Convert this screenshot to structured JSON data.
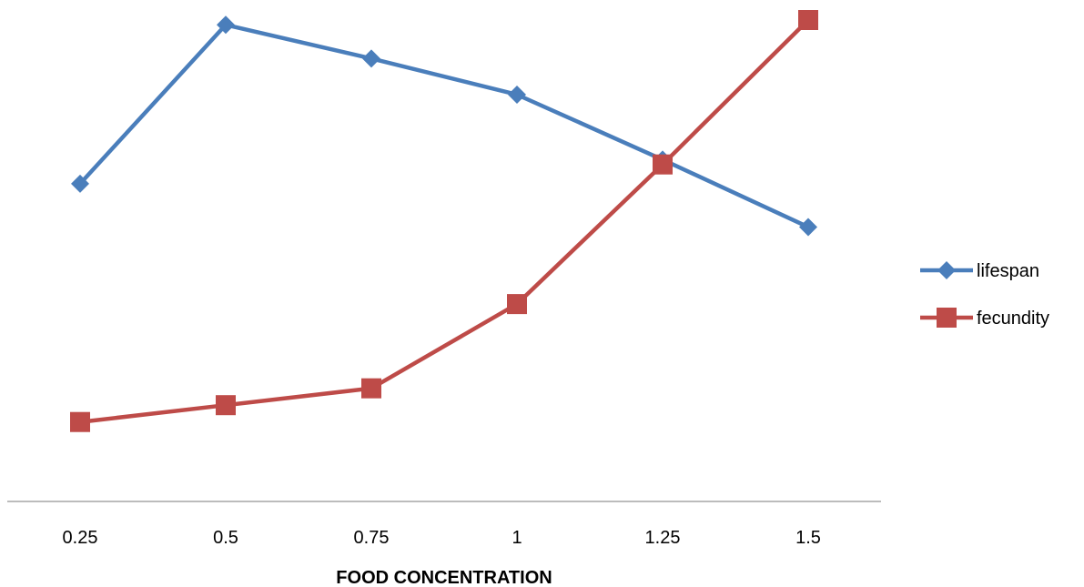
{
  "chart_data": {
    "type": "line",
    "title": "",
    "xlabel": "FOOD CONCENTRATION",
    "ylabel": "",
    "categories": [
      "0.25",
      "0.5",
      "0.75",
      "1",
      "1.25",
      "1.5"
    ],
    "ylim": [
      0,
      100
    ],
    "grid": false,
    "legend_position": "right",
    "series": [
      {
        "name": "lifespan",
        "color": "#4a7ebb",
        "marker": "diamond",
        "values": [
          66,
          99,
          92,
          84.5,
          71,
          57
        ]
      },
      {
        "name": "fecundity",
        "color": "#be4b48",
        "marker": "square",
        "values": [
          16.5,
          20,
          23.5,
          41,
          70,
          100
        ]
      }
    ]
  }
}
